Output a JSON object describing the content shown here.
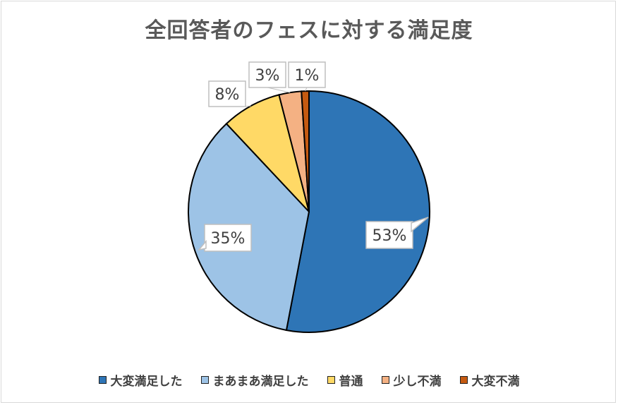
{
  "chart_data": {
    "type": "pie",
    "title": "全回答者のフェスに対する満足度",
    "categories": [
      "大変満足した",
      "まあまあ満足した",
      "普通",
      "少し不満",
      "大変不満"
    ],
    "values": [
      53,
      35,
      8,
      3,
      1
    ],
    "labels": [
      "53%",
      "35%",
      "8%",
      "3%",
      "1%"
    ],
    "colors": [
      "#2e75b6",
      "#9dc3e6",
      "#ffd966",
      "#f4b183",
      "#c55a11"
    ],
    "legend_position": "bottom"
  }
}
